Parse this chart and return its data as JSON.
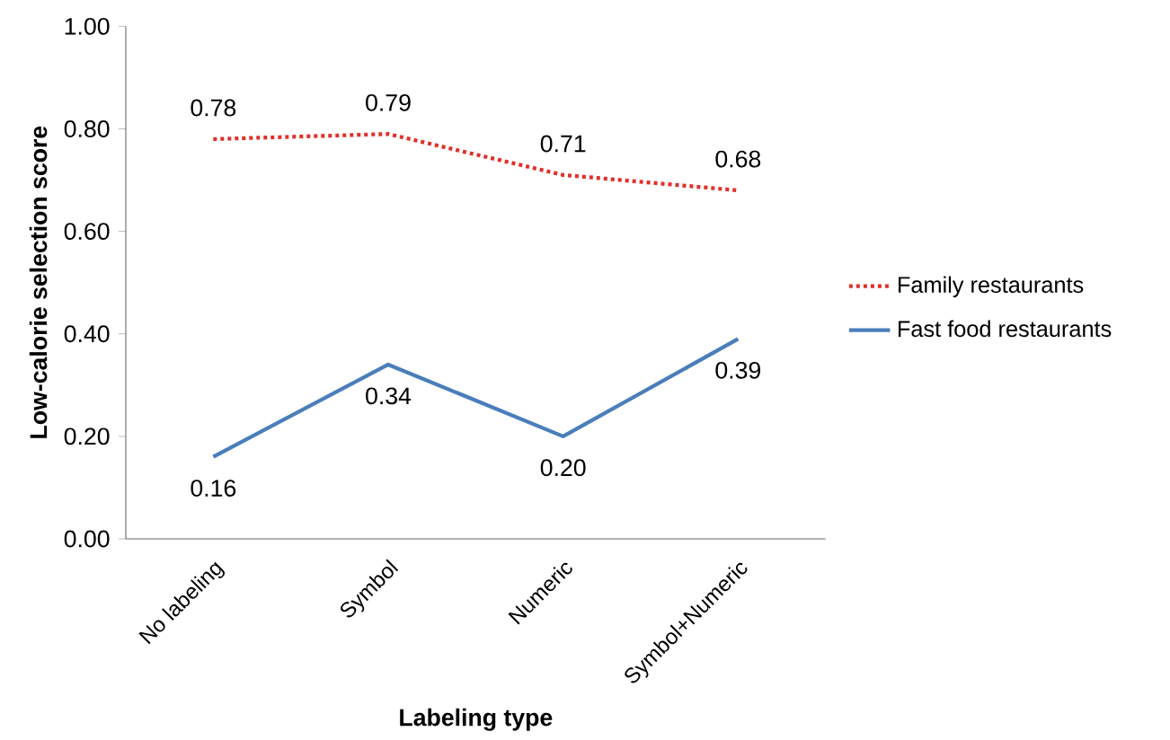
{
  "chart_data": {
    "type": "line",
    "xlabel": "Labeling type",
    "ylabel": "Low-calorie selection score",
    "categories": [
      "No labeling",
      "Symbol",
      "Numeric",
      "Symbol+Numeric"
    ],
    "series": [
      {
        "name": "Family restaurants",
        "color": "#e0302a",
        "line_style": "dotted",
        "values": [
          0.78,
          0.79,
          0.71,
          0.68
        ],
        "value_labels": [
          "0.78",
          "0.79",
          "0.71",
          "0.68"
        ]
      },
      {
        "name": "Fast food restaurants",
        "color": "#4a7ebb",
        "line_style": "solid",
        "values": [
          0.16,
          0.34,
          0.2,
          0.39
        ],
        "value_labels": [
          "0.16",
          "0.34",
          "0.20",
          "0.39"
        ]
      }
    ],
    "ylim": [
      0,
      1
    ],
    "yticks": [
      {
        "value": 0,
        "label": "0.00"
      },
      {
        "value": 0.2,
        "label": "0.20"
      },
      {
        "value": 0.4,
        "label": "0.40"
      },
      {
        "value": 0.6,
        "label": "0.60"
      },
      {
        "value": 0.8,
        "label": "0.80"
      },
      {
        "value": 1,
        "label": "1.00"
      }
    ],
    "grid": false,
    "legend": "right"
  }
}
